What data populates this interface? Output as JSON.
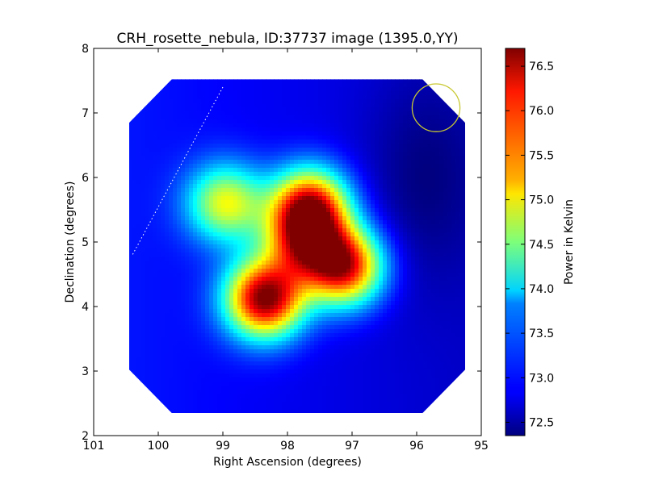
{
  "chart_data": {
    "type": "heatmap",
    "title": "CRH_rosette_nebula, ID:37737 image (1395.0,YY)",
    "xlabel": "Right Ascension (degrees)",
    "ylabel": "Declination (degrees)",
    "xlim": [
      101,
      95
    ],
    "ylim": [
      2,
      8
    ],
    "x_ticks": [
      "101",
      "100",
      "99",
      "98",
      "97",
      "96",
      "95"
    ],
    "y_ticks": [
      "2",
      "3",
      "4",
      "5",
      "6",
      "7",
      "8"
    ],
    "colorbar": {
      "label": "Power in Kelvin",
      "range": [
        72.35,
        76.7
      ],
      "ticks": [
        "72.5",
        "73.0",
        "73.5",
        "74.0",
        "74.5",
        "75.0",
        "75.5",
        "76.0",
        "76.5"
      ],
      "colormap": "jet"
    },
    "map_footprint": {
      "shape": "octagon",
      "ra_range": [
        95.25,
        100.45
      ],
      "dec_range": [
        2.35,
        7.52
      ]
    },
    "background_level": 72.8,
    "sources": [
      {
        "ra": 98.35,
        "dec": 4.12,
        "peak": 76.65
      },
      {
        "ra": 97.65,
        "dec": 5.55,
        "peak": 76.1
      },
      {
        "ra": 97.12,
        "dec": 4.62,
        "peak": 76.25
      },
      {
        "ra": 98.95,
        "dec": 5.6,
        "peak": 74.9
      },
      {
        "ra": 97.75,
        "dec": 5.0,
        "peak": 75.2
      }
    ],
    "annotations": [
      {
        "type": "beam-circle",
        "ra": 95.7,
        "dec": 7.08,
        "radius_deg": 0.37,
        "color": "#c8c832"
      },
      {
        "type": "dotted-line",
        "from": [
          99.0,
          7.4
        ],
        "to": [
          100.4,
          4.8
        ],
        "color": "#ffffff"
      }
    ],
    "grid": false,
    "legend": "none"
  }
}
